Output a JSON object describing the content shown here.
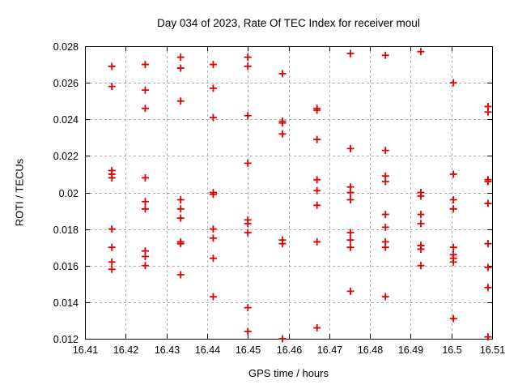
{
  "chart_data": {
    "type": "scatter",
    "title": "Day 034 of 2023, Rate Of TEC Index for receiver moul",
    "xlabel": "GPS time / hours",
    "ylabel": "ROTI / TECUs",
    "xlim": [
      16.41,
      16.51
    ],
    "ylim": [
      0.012,
      0.028
    ],
    "xtick_values": [
      16.41,
      16.42,
      16.43,
      16.44,
      16.45,
      16.46,
      16.47,
      16.48,
      16.49,
      16.5,
      16.51
    ],
    "xtick_labels": [
      "16.41",
      "16.42",
      "16.43",
      "16.44",
      "16.45",
      "16.46",
      "16.47",
      "16.48",
      "16.49",
      "16.5",
      "16.51"
    ],
    "ytick_values": [
      0.012,
      0.014,
      0.016,
      0.018,
      0.02,
      0.022,
      0.024,
      0.026,
      0.028
    ],
    "ytick_labels": [
      "0.012",
      "0.014",
      "0.016",
      "0.018",
      "0.02",
      "0.022",
      "0.024",
      "0.026",
      "0.028"
    ],
    "grid": true,
    "legend": false,
    "marker": "plus",
    "marker_color": "#e00000",
    "grid_color": "#b0b0b0",
    "border_color": "#000000",
    "points": [
      [
        16.4166,
        0.0269
      ],
      [
        16.4166,
        0.0258
      ],
      [
        16.4166,
        0.0212
      ],
      [
        16.4166,
        0.021
      ],
      [
        16.4166,
        0.0208
      ],
      [
        16.4166,
        0.018
      ],
      [
        16.4166,
        0.017
      ],
      [
        16.4166,
        0.0162
      ],
      [
        16.4166,
        0.0158
      ],
      [
        16.4248,
        0.027
      ],
      [
        16.4248,
        0.0256
      ],
      [
        16.4248,
        0.0246
      ],
      [
        16.4248,
        0.0208
      ],
      [
        16.4248,
        0.0195
      ],
      [
        16.4248,
        0.0191
      ],
      [
        16.4248,
        0.0168
      ],
      [
        16.4248,
        0.0165
      ],
      [
        16.4248,
        0.016
      ],
      [
        16.4335,
        0.0274
      ],
      [
        16.4335,
        0.0268
      ],
      [
        16.4335,
        0.025
      ],
      [
        16.4335,
        0.0196
      ],
      [
        16.4335,
        0.0191
      ],
      [
        16.4335,
        0.0186
      ],
      [
        16.4335,
        0.0173
      ],
      [
        16.4335,
        0.0172
      ],
      [
        16.4335,
        0.0155
      ],
      [
        16.4415,
        0.027
      ],
      [
        16.4415,
        0.0257
      ],
      [
        16.4415,
        0.0241
      ],
      [
        16.4415,
        0.02
      ],
      [
        16.4415,
        0.0199
      ],
      [
        16.4415,
        0.018
      ],
      [
        16.4415,
        0.0175
      ],
      [
        16.4415,
        0.0164
      ],
      [
        16.4415,
        0.0143
      ],
      [
        16.45,
        0.0274
      ],
      [
        16.45,
        0.0269
      ],
      [
        16.45,
        0.0242
      ],
      [
        16.45,
        0.0216
      ],
      [
        16.45,
        0.0185
      ],
      [
        16.45,
        0.0183
      ],
      [
        16.45,
        0.0178
      ],
      [
        16.45,
        0.0137
      ],
      [
        16.45,
        0.0124
      ],
      [
        16.4585,
        0.0265
      ],
      [
        16.4585,
        0.0239
      ],
      [
        16.4585,
        0.0238
      ],
      [
        16.4585,
        0.0232
      ],
      [
        16.4585,
        0.0174
      ],
      [
        16.4585,
        0.0172
      ],
      [
        16.4585,
        0.012
      ],
      [
        16.467,
        0.0246
      ],
      [
        16.467,
        0.0245
      ],
      [
        16.467,
        0.0229
      ],
      [
        16.467,
        0.0207
      ],
      [
        16.467,
        0.0201
      ],
      [
        16.467,
        0.0193
      ],
      [
        16.467,
        0.0173
      ],
      [
        16.467,
        0.0126
      ],
      [
        16.4752,
        0.0276
      ],
      [
        16.4752,
        0.0224
      ],
      [
        16.4752,
        0.0203
      ],
      [
        16.4752,
        0.02
      ],
      [
        16.4752,
        0.0196
      ],
      [
        16.4752,
        0.0178
      ],
      [
        16.4752,
        0.0174
      ],
      [
        16.4752,
        0.017
      ],
      [
        16.4752,
        0.0146
      ],
      [
        16.4838,
        0.0275
      ],
      [
        16.4838,
        0.0223
      ],
      [
        16.4838,
        0.0209
      ],
      [
        16.4838,
        0.0206
      ],
      [
        16.4838,
        0.0188
      ],
      [
        16.4838,
        0.0181
      ],
      [
        16.4838,
        0.0173
      ],
      [
        16.4838,
        0.017
      ],
      [
        16.4838,
        0.0143
      ],
      [
        16.4925,
        0.0277
      ],
      [
        16.4925,
        0.02
      ],
      [
        16.4925,
        0.0198
      ],
      [
        16.4925,
        0.0188
      ],
      [
        16.4925,
        0.0183
      ],
      [
        16.4925,
        0.0171
      ],
      [
        16.4925,
        0.0169
      ],
      [
        16.4925,
        0.016
      ],
      [
        16.5005,
        0.026
      ],
      [
        16.5005,
        0.021
      ],
      [
        16.5005,
        0.0196
      ],
      [
        16.5005,
        0.0191
      ],
      [
        16.5005,
        0.017
      ],
      [
        16.5005,
        0.0166
      ],
      [
        16.5005,
        0.0164
      ],
      [
        16.5005,
        0.0162
      ],
      [
        16.5005,
        0.0131
      ],
      [
        16.509,
        0.0247
      ],
      [
        16.509,
        0.0244
      ],
      [
        16.509,
        0.0207
      ],
      [
        16.509,
        0.0206
      ],
      [
        16.509,
        0.0194
      ],
      [
        16.509,
        0.0172
      ],
      [
        16.509,
        0.0159
      ],
      [
        16.509,
        0.0148
      ],
      [
        16.509,
        0.0121
      ]
    ]
  }
}
